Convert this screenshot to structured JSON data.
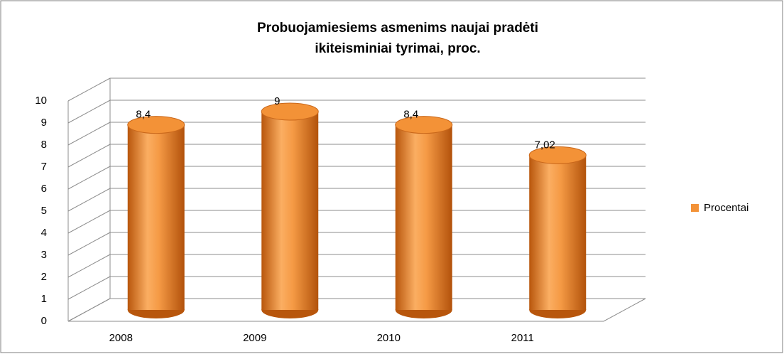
{
  "chart_data": {
    "type": "bar",
    "title": [
      "Probuojamiesiems asmenims naujai pradėti",
      "ikiteisminiai tyrimai, proc."
    ],
    "categories": [
      "2008",
      "2009",
      "2010",
      "2011"
    ],
    "series": [
      {
        "name": "Procentai",
        "color": "#f39237",
        "values": [
          8.4,
          9,
          8.4,
          7.02
        ],
        "value_labels": [
          "8,4",
          "9",
          "8,4",
          "7,02"
        ]
      }
    ],
    "ylim": [
      0,
      10
    ],
    "yticks": [
      0,
      1,
      2,
      3,
      4,
      5,
      6,
      7,
      8,
      9,
      10
    ],
    "grid": true,
    "legend": "right"
  }
}
